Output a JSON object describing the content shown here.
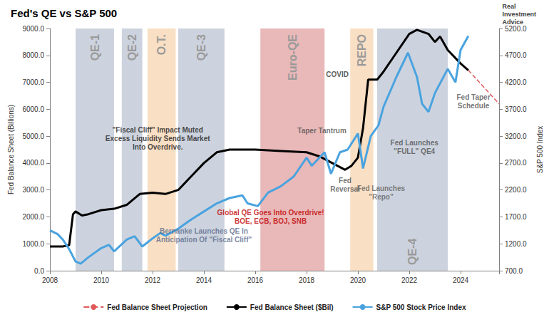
{
  "chart_data": {
    "type": "line",
    "title": "Fed's QE vs S&P 500",
    "logo": "Real\nInvestment\nAdvice",
    "y_label": "Fed Balance Sheet (Billions)",
    "y2_label": "S&P 500 Index",
    "xlim": [
      2008,
      2025.5
    ],
    "xticks": [
      2008,
      2010,
      2012,
      2014,
      2016,
      2018,
      2020,
      2022,
      2024
    ],
    "ylim": [
      0,
      9000
    ],
    "yticks": [
      {
        "value": 0,
        "label": "0.0"
      },
      {
        "value": 1000,
        "label": "1000.0"
      },
      {
        "value": 2000,
        "label": "2000.0"
      },
      {
        "value": 3000,
        "label": "3000.0"
      },
      {
        "value": 4000,
        "label": "4000.0"
      },
      {
        "value": 5000,
        "label": "5000.0"
      },
      {
        "value": 6000,
        "label": "6000.0"
      },
      {
        "value": 7000,
        "label": "7000.0"
      },
      {
        "value": 8000,
        "label": "8000.0"
      },
      {
        "value": 9000,
        "label": "9000.0"
      }
    ],
    "y2lim": [
      700,
      5200
    ],
    "y2ticks": [
      {
        "value": 700,
        "label": "700.0"
      },
      {
        "value": 1200,
        "label": "1200.0"
      },
      {
        "value": 1700,
        "label": "1700.0"
      },
      {
        "value": 2200,
        "label": "2200.0"
      },
      {
        "value": 2700,
        "label": "2700.0"
      },
      {
        "value": 3200,
        "label": "3200.0"
      },
      {
        "value": 3700,
        "label": "3700.0"
      },
      {
        "value": 4200,
        "label": "4200.0"
      },
      {
        "value": 4700,
        "label": "4700.0"
      },
      {
        "value": 5200,
        "label": "5200.0"
      }
    ],
    "grid": false,
    "legend": "bottom",
    "series": [
      {
        "name": "Fed Balance Sheet Projection",
        "color": "#e05a5a",
        "line_style": "dashed",
        "x": [
          2024.3,
          2025.5
        ],
        "values": [
          7450,
          6200
        ]
      },
      {
        "name": "Fed Balance Sheet ($Bil)",
        "color": "#000000",
        "line_style": "solid",
        "x": [
          2008,
          2008.5,
          2008.75,
          2008.9,
          2009,
          2009.25,
          2009.5,
          2010,
          2010.5,
          2011,
          2011.5,
          2012,
          2012.5,
          2013,
          2013.5,
          2014,
          2014.5,
          2015,
          2016,
          2017,
          2018,
          2018.5,
          2019,
          2019.5,
          2019.75,
          2020,
          2020.2,
          2020.4,
          2020.75,
          2021,
          2021.5,
          2022,
          2022.3,
          2022.75,
          2023,
          2023.2,
          2023.5,
          2024,
          2024.3
        ],
        "values": [
          900,
          900,
          950,
          2100,
          2200,
          2050,
          2100,
          2250,
          2300,
          2450,
          2850,
          2900,
          2850,
          3000,
          3500,
          4000,
          4400,
          4500,
          4500,
          4450,
          4400,
          4250,
          4000,
          3750,
          3900,
          4200,
          5300,
          7100,
          7100,
          7400,
          8100,
          8800,
          8950,
          8800,
          8500,
          8700,
          8200,
          7700,
          7450
        ]
      },
      {
        "name": "S&P 500 Stock Price Index",
        "color": "#4aa3df",
        "line_style": "solid",
        "axis": "y2",
        "x": [
          2008,
          2008.3,
          2008.5,
          2008.75,
          2009,
          2009.2,
          2009.5,
          2010,
          2010.3,
          2010.5,
          2011,
          2011.3,
          2011.6,
          2012,
          2012.3,
          2012.5,
          2013,
          2013.5,
          2014,
          2014.5,
          2015,
          2015.5,
          2015.7,
          2016.1,
          2016.5,
          2017,
          2017.5,
          2018,
          2018.2,
          2018.7,
          2018.95,
          2019.3,
          2019.6,
          2020,
          2020.2,
          2020.5,
          2020.8,
          2021,
          2021.5,
          2021.95,
          2022.3,
          2022.5,
          2022.75,
          2023,
          2023.5,
          2023.8,
          2024,
          2024.3
        ],
        "values": [
          1450,
          1380,
          1280,
          1100,
          870,
          830,
          950,
          1120,
          1180,
          1060,
          1280,
          1340,
          1150,
          1300,
          1400,
          1350,
          1480,
          1650,
          1800,
          1950,
          2050,
          2100,
          1950,
          1900,
          2150,
          2270,
          2450,
          2800,
          2650,
          2900,
          2500,
          2900,
          2950,
          3250,
          2600,
          3200,
          3400,
          3750,
          4300,
          4750,
          4300,
          3800,
          3650,
          4000,
          4450,
          4200,
          4800,
          5060
        ]
      }
    ],
    "bands": [
      {
        "label": "QE-1",
        "start": 2009.0,
        "end": 2010.5,
        "color": "#cdd3de"
      },
      {
        "label": "QE-2",
        "start": 2010.8,
        "end": 2011.6,
        "color": "#cdd3de"
      },
      {
        "label": "O.T.",
        "start": 2011.8,
        "end": 2012.9,
        "color": "#f9dfc4"
      },
      {
        "label": "QE-3",
        "start": 2013.0,
        "end": 2014.8,
        "color": "#cdd3de"
      },
      {
        "label": "Euro-QE",
        "start": 2016.2,
        "end": 2018.7,
        "color": "#e9b8b8"
      },
      {
        "label": "REPO",
        "start": 2019.7,
        "end": 2020.6,
        "color": "#f9dfc4"
      },
      {
        "label": "QE-4",
        "start": 2020.75,
        "end": 2023.5,
        "color": "#cdd3de"
      }
    ],
    "annotations": [
      {
        "text": "\"Fiscal Cliff\" Impact Muted\nExcess Liquidity Sends Market\nInto Overdrive.",
        "x": 2012.2,
        "y": 4900,
        "color": "#202020"
      },
      {
        "text": "Global QE Goes Into Overdrive!\nBOE, ECB, BOJ, SNB",
        "x": 2016.6,
        "y": 2000,
        "color": "#c00000"
      },
      {
        "text": "Bernanke Launches QE In\nAnticipation Of \"Fiscal Cliff\"",
        "x": 2014.0,
        "y": 1300,
        "color": "#5a6a8a"
      },
      {
        "text": "COVID",
        "x": 2019.2,
        "y": 7300,
        "color": "#303030"
      },
      {
        "text": "Taper Tantrum",
        "x": 2018.6,
        "y": 5200,
        "color": "#505050"
      },
      {
        "text": "Fed\nReversal",
        "x": 2019.5,
        "y": 3200,
        "color": "#505050"
      },
      {
        "text": "Fed Launches\n\"Repo\"",
        "x": 2020.9,
        "y": 2900,
        "color": "#606060"
      },
      {
        "text": "Fed Launches\n\"FULL\" QE4",
        "x": 2022.2,
        "y": 4600,
        "color": "#505050"
      },
      {
        "text": "Fed Taper\nSchedule",
        "x": 2024.5,
        "y": 6300,
        "color": "#505050"
      }
    ]
  }
}
